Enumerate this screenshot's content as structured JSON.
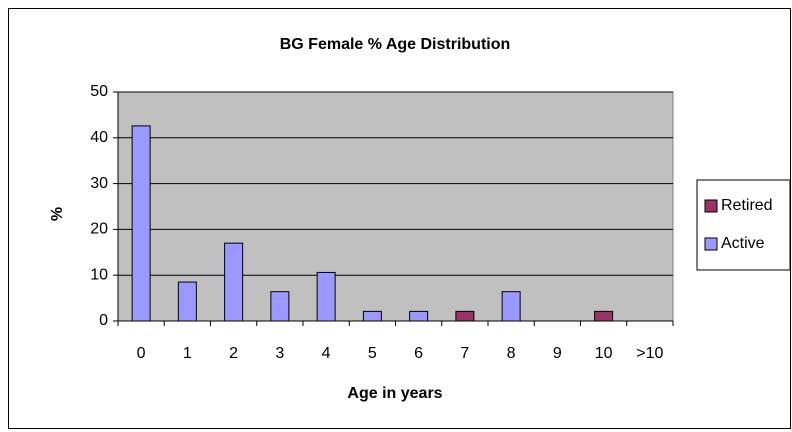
{
  "chart_data": {
    "type": "stacked_bar",
    "title": "BG Female % Age Distribution",
    "x_label": "Age in years",
    "y_label": "%",
    "categories": [
      "0",
      "1",
      "2",
      "3",
      "4",
      "5",
      "6",
      "7",
      "8",
      "9",
      "10",
      ">10"
    ],
    "series": [
      {
        "name": "Active",
        "color": "#9999FF",
        "values": [
          42.6,
          8.5,
          17,
          6.4,
          10.6,
          2.1,
          2.1,
          0,
          6.4,
          0,
          0,
          0
        ]
      },
      {
        "name": "Retired",
        "color": "#993366",
        "values": [
          0,
          0,
          0,
          0,
          0,
          0,
          0,
          2.1,
          0,
          0,
          2.1,
          0
        ]
      }
    ],
    "ylim": [
      0,
      50
    ],
    "yticks": [
      0,
      10,
      20,
      30,
      40,
      50
    ],
    "grid": true,
    "legend": "right",
    "plot_background": "#C0C0C0"
  }
}
